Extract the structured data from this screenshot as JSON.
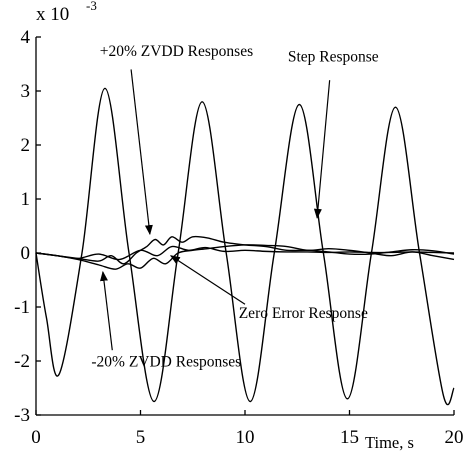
{
  "chart_data": {
    "type": "line",
    "title": "",
    "xlabel": "Time, s",
    "ylabel": "",
    "y_exponent_label": "x 10",
    "y_exponent_power": "-3",
    "xlim": [
      0,
      20
    ],
    "ylim": [
      -3,
      4
    ],
    "x_ticks": [
      {
        "value": 0,
        "label": "0"
      },
      {
        "value": 5,
        "label": "5"
      },
      {
        "value": 10,
        "label": "10"
      },
      {
        "value": 15,
        "label": "15"
      },
      {
        "value": 20,
        "label": "20"
      }
    ],
    "y_ticks": [
      {
        "value": 4,
        "label": "4"
      },
      {
        "value": 3,
        "label": "3"
      },
      {
        "value": 2,
        "label": "2"
      },
      {
        "value": 1,
        "label": "1"
      },
      {
        "value": 0,
        "label": "0"
      },
      {
        "value": -1,
        "label": "-1"
      },
      {
        "value": -2,
        "label": "-2"
      },
      {
        "value": -3,
        "label": "-3"
      }
    ],
    "series": [
      {
        "key": "step",
        "x": [
          0,
          0.5,
          1.1,
          2.2,
          3.3,
          4.45,
          5.65,
          6.8,
          7.95,
          9.1,
          10.25,
          11.4,
          12.6,
          13.75,
          14.9,
          16.05,
          17.2,
          18.35,
          19.5,
          20
        ],
        "y": [
          0,
          -1.2,
          -2.25,
          0,
          3.05,
          0,
          -2.75,
          0,
          2.8,
          0,
          -2.75,
          0,
          2.75,
          0,
          -2.7,
          0,
          2.7,
          0,
          -2.65,
          -2.5
        ]
      },
      {
        "key": "zvdd_plus20",
        "x": [
          0,
          1.0,
          2.0,
          3.0,
          3.6,
          4.2,
          4.8,
          5.3,
          5.7,
          6.1,
          6.5,
          7.0,
          7.5,
          8.2,
          9.0,
          10,
          11,
          12,
          13,
          14,
          15,
          16,
          17,
          18,
          19,
          20
        ],
        "y": [
          0,
          -0.05,
          -0.1,
          -0.15,
          -0.05,
          -0.2,
          0,
          0.12,
          0.25,
          0.15,
          0.3,
          0.2,
          0.3,
          0.28,
          0.2,
          0.15,
          0.12,
          0.05,
          0.05,
          0.02,
          -0.02,
          -0.02,
          0.02,
          0.06,
          0.04,
          -0.02
        ]
      },
      {
        "key": "zvdd_minus20",
        "x": [
          0,
          1.0,
          2.0,
          3.0,
          3.8,
          4.4,
          5.0,
          5.6,
          6.2,
          6.8,
          7.5,
          8.2,
          9.0,
          10,
          11,
          12,
          13,
          14,
          15,
          16,
          17,
          18,
          19,
          20
        ],
        "y": [
          0,
          -0.05,
          -0.12,
          -0.22,
          -0.3,
          -0.2,
          -0.28,
          -0.1,
          -0.2,
          0,
          0.05,
          0.08,
          0.12,
          0.15,
          0.14,
          0.12,
          0.05,
          0.08,
          0.05,
          0,
          -0.05,
          0.02,
          -0.05,
          -0.12
        ]
      },
      {
        "key": "zero_error",
        "x": [
          0,
          1.0,
          2.0,
          3.0,
          4.0,
          5.0,
          5.8,
          6.5,
          7.3,
          8.1,
          9.0,
          10,
          11,
          12,
          13,
          14,
          15,
          16,
          17,
          18,
          19,
          20
        ],
        "y": [
          0,
          -0.05,
          -0.1,
          -0.02,
          -0.12,
          0.05,
          -0.05,
          0.12,
          0.05,
          0.1,
          0.03,
          0.05,
          0.03,
          0.02,
          0.02,
          0.01,
          0.02,
          0.01,
          0.01,
          0.02,
          0.01,
          0
        ]
      }
    ],
    "annotations": [
      {
        "key": "plus20",
        "text": "+20% ZVDD Responses",
        "label_x": 3.05,
        "label_y": 3.65,
        "arrow_from": [
          4.55,
          3.4
        ],
        "arrow_to": [
          5.45,
          0.35
        ]
      },
      {
        "key": "step",
        "text": "Step Response",
        "label_x": 12.05,
        "label_y": 3.55,
        "arrow_from": [
          14.05,
          3.2
        ],
        "arrow_to": [
          13.45,
          0.65
        ]
      },
      {
        "key": "zero",
        "text": "Zero Error Response",
        "label_x": 9.7,
        "label_y": -1.2,
        "arrow_from": [
          10.0,
          -0.95
        ],
        "arrow_to": [
          6.45,
          -0.05
        ]
      },
      {
        "key": "minus20",
        "text": "-20% ZVDD Responses",
        "label_x": 2.65,
        "label_y": -2.1,
        "arrow_from": [
          3.65,
          -1.8
        ],
        "arrow_to": [
          3.2,
          -0.35
        ]
      }
    ]
  }
}
